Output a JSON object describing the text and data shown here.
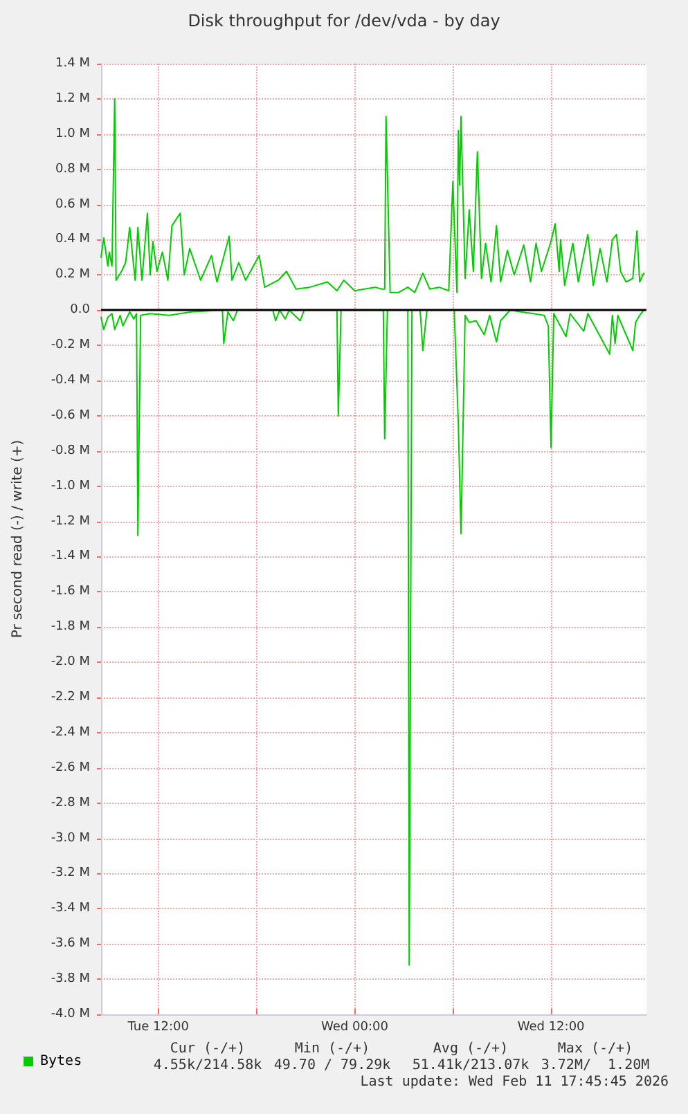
{
  "chart_data": {
    "type": "line",
    "title": "Disk throughput for /dev/vda - by day",
    "ylabel": "Pr second read (-) / write (+)",
    "xlim": [
      "2026-02-10T08:30",
      "2026-02-11T17:50"
    ],
    "xticks": [
      {
        "value": "2026-02-10T12:00",
        "label": "Tue 12:00"
      },
      {
        "value": "2026-02-10T18:00",
        "label": null
      },
      {
        "value": "2026-02-11T00:00",
        "label": "Wed 00:00"
      },
      {
        "value": "2026-02-11T06:00",
        "label": null
      },
      {
        "value": "2026-02-11T12:00",
        "label": "Wed 12:00"
      }
    ],
    "ylim": [
      -4.0,
      1.4
    ],
    "yticks": [
      {
        "value": -4.0,
        "label": "-4.0 M"
      },
      {
        "value": -3.8,
        "label": "-3.8 M"
      },
      {
        "value": -3.6,
        "label": "-3.6 M"
      },
      {
        "value": -3.4,
        "label": "-3.4 M"
      },
      {
        "value": -3.2,
        "label": "-3.2 M"
      },
      {
        "value": -3.0,
        "label": "-3.0 M"
      },
      {
        "value": -2.8,
        "label": "-2.8 M"
      },
      {
        "value": -2.6,
        "label": "-2.6 M"
      },
      {
        "value": -2.4,
        "label": "-2.4 M"
      },
      {
        "value": -2.2,
        "label": "-2.2 M"
      },
      {
        "value": -2.0,
        "label": "-2.0 M"
      },
      {
        "value": -1.8,
        "label": "-1.8 M"
      },
      {
        "value": -1.6,
        "label": "-1.6 M"
      },
      {
        "value": -1.4,
        "label": "-1.4 M"
      },
      {
        "value": -1.2,
        "label": "-1.2 M"
      },
      {
        "value": -1.0,
        "label": "-1.0 M"
      },
      {
        "value": -0.8,
        "label": "-0.8 M"
      },
      {
        "value": -0.6,
        "label": "-0.6 M"
      },
      {
        "value": -0.4,
        "label": "-0.4 M"
      },
      {
        "value": -0.2,
        "label": "-0.2 M"
      },
      {
        "value": 0,
        "label": "0.0"
      },
      {
        "value": 0.2,
        "label": "0.2 M"
      },
      {
        "value": 0.4,
        "label": "0.4 M"
      },
      {
        "value": 0.6,
        "label": "0.6 M"
      },
      {
        "value": 0.8,
        "label": "0.8 M"
      },
      {
        "value": 1.0,
        "label": "1.0 M"
      },
      {
        "value": 1.2,
        "label": "1.2 M"
      },
      {
        "value": 1.4,
        "label": "1.4 M"
      }
    ],
    "grid": true,
    "legend": "bottom left",
    "marker": "none",
    "line_style": "solid",
    "ref_lines": [
      {
        "axis": "y",
        "value": 0,
        "color": "#000000"
      }
    ],
    "series": [
      {
        "name": "Bytes",
        "color": "#00cc00",
        "x": [
          "2026-02-10T08:30",
          "2026-02-10T08:40",
          "2026-02-10T08:55",
          "2026-02-10T09:00",
          "2026-02-10T09:10",
          "2026-02-10T09:20",
          "2026-02-10T09:25",
          "2026-02-10T09:45",
          "2026-02-10T10:00",
          "2026-02-10T10:15",
          "2026-02-10T10:35",
          "2026-02-10T10:45",
          "2026-02-10T11:00",
          "2026-02-10T11:20",
          "2026-02-10T11:30",
          "2026-02-10T11:40",
          "2026-02-10T11:55",
          "2026-02-10T12:15",
          "2026-02-10T12:35",
          "2026-02-10T12:50",
          "2026-02-10T13:20",
          "2026-02-10T13:35",
          "2026-02-10T13:55",
          "2026-02-10T14:35",
          "2026-02-10T15:15",
          "2026-02-10T15:35",
          "2026-02-10T16:20",
          "2026-02-10T16:30",
          "2026-02-10T16:55",
          "2026-02-10T17:20",
          "2026-02-10T18:10",
          "2026-02-10T18:30",
          "2026-02-10T19:20",
          "2026-02-10T19:50",
          "2026-02-10T20:25",
          "2026-02-10T21:15",
          "2026-02-10T22:20",
          "2026-02-10T22:55",
          "2026-02-10T23:20",
          "2026-02-11T00:00",
          "2026-02-11T00:35",
          "2026-02-11T01:15",
          "2026-02-11T01:40",
          "2026-02-11T01:50",
          "2026-02-11T01:55",
          "2026-02-11T02:10",
          "2026-02-11T02:40",
          "2026-02-11T03:15",
          "2026-02-11T03:40",
          "2026-02-11T04:10",
          "2026-02-11T04:35",
          "2026-02-11T05:10",
          "2026-02-11T05:45",
          "2026-02-11T06:00",
          "2026-02-11T06:15",
          "2026-02-11T06:20",
          "2026-02-11T06:25",
          "2026-02-11T06:30",
          "2026-02-11T06:45",
          "2026-02-11T07:00",
          "2026-02-11T07:15",
          "2026-02-11T07:30",
          "2026-02-11T07:45",
          "2026-02-11T08:00",
          "2026-02-11T08:20",
          "2026-02-11T08:40",
          "2026-02-11T08:55",
          "2026-02-11T09:20",
          "2026-02-11T09:45",
          "2026-02-11T10:20",
          "2026-02-11T10:45",
          "2026-02-11T11:05",
          "2026-02-11T11:25",
          "2026-02-11T12:00",
          "2026-02-11T12:15",
          "2026-02-11T12:30",
          "2026-02-11T12:35",
          "2026-02-11T12:50",
          "2026-02-11T13:20",
          "2026-02-11T13:40",
          "2026-02-11T14:15",
          "2026-02-11T14:35",
          "2026-02-11T15:00",
          "2026-02-11T15:25",
          "2026-02-11T15:45",
          "2026-02-11T16:00",
          "2026-02-11T16:15",
          "2026-02-11T16:35",
          "2026-02-11T17:00",
          "2026-02-11T17:15",
          "2026-02-11T17:25",
          "2026-02-11T17:40"
        ],
        "values": [
          0.3,
          0.41,
          0.25,
          0.33,
          0.25,
          1.2,
          0.17,
          0.22,
          0.27,
          0.47,
          0.17,
          0.47,
          0.17,
          0.55,
          0.2,
          0.39,
          0.22,
          0.33,
          0.17,
          0.48,
          0.55,
          0.2,
          0.35,
          0.17,
          0.31,
          0.16,
          0.42,
          0.17,
          0.27,
          0.17,
          0.31,
          0.13,
          0.17,
          0.22,
          0.12,
          0.13,
          0.16,
          0.11,
          0.17,
          0.11,
          0.12,
          0.13,
          0.12,
          0.12,
          1.1,
          0.1,
          0.1,
          0.13,
          0.1,
          0.21,
          0.12,
          0.13,
          0.11,
          0.73,
          0.1,
          1.02,
          0.71,
          1.1,
          0.18,
          0.57,
          0.22,
          0.9,
          0.18,
          0.38,
          0.16,
          0.48,
          0.16,
          0.34,
          0.2,
          0.37,
          0.16,
          0.38,
          0.22,
          0.39,
          0.49,
          0.22,
          0.4,
          0.14,
          0.38,
          0.16,
          0.43,
          0.14,
          0.35,
          0.16,
          0.4,
          0.43,
          0.22,
          0.16,
          0.18,
          0.45,
          0.16,
          0.21
        ]
      },
      {
        "color": "#00cc00",
        "x": [
          "2026-02-10T08:30",
          "2026-02-10T08:40",
          "2026-02-10T08:55",
          "2026-02-10T09:10",
          "2026-02-10T09:20",
          "2026-02-10T09:40",
          "2026-02-10T09:50",
          "2026-02-10T10:15",
          "2026-02-10T10:30",
          "2026-02-10T10:40",
          "2026-02-10T10:45",
          "2026-02-10T10:55",
          "2026-02-10T11:30",
          "2026-02-10T12:40",
          "2026-02-10T14:00",
          "2026-02-10T15:55",
          "2026-02-10T16:00",
          "2026-02-10T16:15",
          "2026-02-10T16:35",
          "2026-02-10T16:50",
          "2026-02-10T19:00",
          "2026-02-10T19:10",
          "2026-02-10T19:25",
          "2026-02-10T19:45",
          "2026-02-10T20:00",
          "2026-02-10T20:40",
          "2026-02-10T20:55",
          "2026-02-10T22:55",
          "2026-02-10T23:00",
          "2026-02-10T23:10",
          "2026-02-11T01:45",
          "2026-02-11T01:50",
          "2026-02-11T02:00",
          "2026-02-11T03:15",
          "2026-02-11T03:20",
          "2026-02-11T03:30",
          "2026-02-11T04:00",
          "2026-02-11T04:10",
          "2026-02-11T04:25",
          "2026-02-11T06:05",
          "2026-02-11T06:20",
          "2026-02-11T06:30",
          "2026-02-11T06:45",
          "2026-02-11T07:00",
          "2026-02-11T07:25",
          "2026-02-11T07:55",
          "2026-02-11T08:15",
          "2026-02-11T08:40",
          "2026-02-11T08:55",
          "2026-02-11T09:30",
          "2026-02-11T11:35",
          "2026-02-11T11:50",
          "2026-02-11T12:00",
          "2026-02-11T12:10",
          "2026-02-11T12:55",
          "2026-02-11T13:10",
          "2026-02-11T14:00",
          "2026-02-11T14:15",
          "2026-02-11T15:35",
          "2026-02-11T15:45",
          "2026-02-11T15:55",
          "2026-02-11T16:05",
          "2026-02-11T17:00",
          "2026-02-11T17:10",
          "2026-02-11T17:25",
          "2026-02-11T17:40"
        ],
        "values": [
          -0.04,
          -0.11,
          -0.04,
          -0.02,
          -0.11,
          -0.03,
          -0.09,
          -0.01,
          -0.05,
          -0.02,
          -1.28,
          -0.03,
          -0.02,
          -0.03,
          -0.01,
          0,
          -0.19,
          -0.01,
          -0.06,
          0,
          0,
          -0.06,
          0,
          -0.05,
          0,
          -0.06,
          0,
          0,
          -0.6,
          0,
          0,
          -0.73,
          0,
          0,
          -3.72,
          0,
          0,
          -0.23,
          0,
          0,
          -0.64,
          -1.27,
          -0.03,
          -0.07,
          -0.06,
          -0.14,
          -0.03,
          -0.18,
          -0.06,
          0,
          -0.03,
          -0.09,
          -0.78,
          -0.02,
          -0.15,
          -0.02,
          -0.12,
          -0.02,
          -0.25,
          -0.03,
          -0.19,
          -0.03,
          -0.23,
          -0.07,
          -0.03,
          0
        ]
      }
    ],
    "annotations": [
      "Cur (-/+)",
      "Min (-/+)",
      "Avg (-/+)",
      "Max (-/+)",
      "4.55k/214.58k",
      "49.70 / 79.29k",
      "51.41k/213.07k",
      "3.72M/  1.20M",
      "Last update: Wed Feb 11 17:45:45 2026"
    ]
  }
}
